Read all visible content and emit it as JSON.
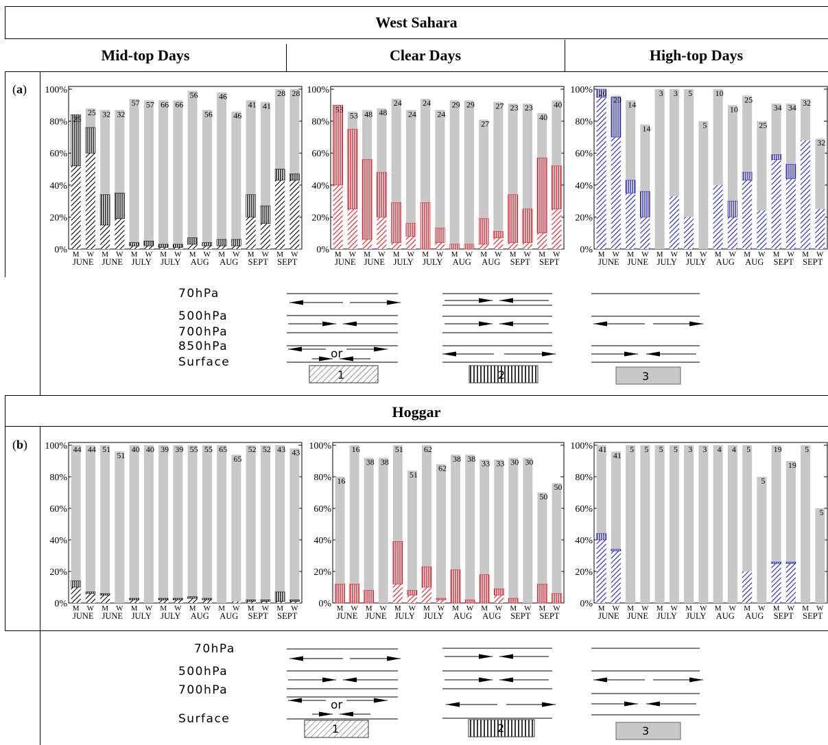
{
  "table": {
    "west_sahara": "West Sahara",
    "hoggar": "Hoggar",
    "col_mid": "Mid-top Days",
    "col_clear": "Clear Days",
    "col_high": "High-top Days",
    "label_a": "a",
    "label_b": "b"
  },
  "schematic": {
    "levels": [
      "70hPa",
      "500hPa",
      "700hPa",
      "850hPa",
      "Surface"
    ],
    "levels_b": [
      "70hPa",
      "500hPa",
      "700hPa",
      "Surface"
    ],
    "or_text": "or",
    "box_labels": [
      "1",
      "2",
      "3"
    ]
  },
  "colors": {
    "mid": "#000000",
    "clear": "#e8141c",
    "high": "#1c1cd2",
    "rest": "#c8c8c8"
  },
  "chart_data": [
    {
      "id": "a_mid",
      "type": "bar",
      "scheme": "mid",
      "categories": [
        "M",
        "W",
        "M",
        "W",
        "M",
        "W",
        "M",
        "W",
        "M",
        "W",
        "M",
        "W",
        "M",
        "W",
        "M",
        "W"
      ],
      "months": [
        "JUNE",
        "JUNE",
        "JULY",
        "JULY",
        "AUG",
        "AUG",
        "SEPT",
        "SEPT"
      ],
      "yticks": [
        "0%",
        "20%",
        "40%",
        "60%",
        "80%",
        "100%"
      ],
      "ylim": [
        0,
        100
      ],
      "totals": [
        84,
        88,
        87,
        87,
        94,
        93,
        93,
        93,
        99,
        87,
        98,
        86,
        93,
        92,
        100,
        100
      ],
      "counts": [
        "25",
        "25",
        "32",
        "32",
        "57",
        "57",
        "66",
        "66",
        "56",
        "56",
        "46",
        "46",
        "41",
        "41",
        "28",
        "28"
      ],
      "diag": [
        52,
        60,
        15,
        19,
        2,
        2,
        1,
        1,
        3,
        2,
        2,
        2,
        20,
        16,
        43,
        43
      ],
      "vert": [
        32,
        16,
        19,
        16,
        2,
        3,
        2,
        2,
        4,
        2,
        4,
        4,
        14,
        11,
        7,
        4
      ]
    },
    {
      "id": "a_clear",
      "type": "bar",
      "scheme": "clear",
      "categories": [
        "M",
        "W",
        "M",
        "W",
        "M",
        "W",
        "M",
        "W",
        "M",
        "W",
        "M",
        "W",
        "M",
        "W",
        "M",
        "W"
      ],
      "months": [
        "JUNE",
        "JUNE",
        "JULY",
        "JULY",
        "AUG",
        "AUG",
        "SEPT",
        "SEPT"
      ],
      "yticks": [
        "0%",
        "20%",
        "40%",
        "60%",
        "80%",
        "100%"
      ],
      "ylim": [
        0,
        100
      ],
      "totals": [
        90,
        86,
        87,
        88,
        94,
        87,
        94,
        87,
        93,
        93,
        81,
        92,
        91,
        91,
        85,
        93
      ],
      "counts": [
        "53",
        "53",
        "48",
        "48",
        "24",
        "24",
        "24",
        "24",
        "29",
        "29",
        "27",
        "27",
        "23",
        "23",
        "40",
        "40"
      ],
      "diag": [
        40,
        25,
        6,
        20,
        4,
        8,
        0,
        4,
        0,
        0,
        3,
        7,
        4,
        4,
        10,
        25
      ],
      "vert": [
        50,
        50,
        50,
        28,
        25,
        8,
        29,
        9,
        3,
        3,
        16,
        4,
        30,
        21,
        47,
        27
      ]
    },
    {
      "id": "a_high",
      "type": "bar",
      "scheme": "high",
      "categories": [
        "M",
        "W",
        "M",
        "W",
        "M",
        "W",
        "M",
        "W",
        "M",
        "W",
        "M",
        "W",
        "M",
        "W",
        "M",
        "W"
      ],
      "months": [
        "JUNE",
        "JUNE",
        "JULY",
        "JULY",
        "AUG",
        "AUG",
        "SEPT",
        "SEPT"
      ],
      "yticks": [
        "0%",
        "20%",
        "40%",
        "60%",
        "80%",
        "100%"
      ],
      "ylim": [
        0,
        100
      ],
      "totals": [
        100,
        96,
        93,
        78,
        100,
        100,
        100,
        80,
        100,
        90,
        96,
        80,
        91,
        91,
        94,
        69
      ],
      "counts": [
        "20",
        "20",
        "14",
        "14",
        "3",
        "3",
        "5",
        "5",
        "10",
        "10",
        "25",
        "25",
        "34",
        "34",
        "32",
        "32"
      ],
      "diag": [
        95,
        70,
        35,
        20,
        0,
        33,
        20,
        0,
        40,
        20,
        43,
        24,
        56,
        44,
        68,
        25
      ],
      "vert": [
        5,
        25,
        8,
        16,
        0,
        0,
        0,
        0,
        0,
        10,
        5,
        0,
        3,
        9,
        0,
        0
      ]
    },
    {
      "id": "b_mid",
      "type": "bar",
      "scheme": "mid",
      "categories": [
        "M",
        "W",
        "M",
        "W",
        "M",
        "W",
        "M",
        "W",
        "M",
        "W",
        "M",
        "W",
        "M",
        "W",
        "M",
        "W"
      ],
      "months": [
        "JUNE",
        "JUNE",
        "JULY",
        "JULY",
        "AUG",
        "AUG",
        "SEPT",
        "SEPT"
      ],
      "yticks": [
        "0%",
        "20%",
        "40%",
        "60%",
        "80%",
        "100%"
      ],
      "ylim": [
        0,
        100
      ],
      "totals": [
        100,
        100,
        100,
        96,
        100,
        100,
        100,
        100,
        100,
        100,
        100,
        94,
        100,
        100,
        100,
        98
      ],
      "counts": [
        "44",
        "44",
        "51",
        "51",
        "40",
        "40",
        "39",
        "39",
        "55",
        "55",
        "65",
        "65",
        "52",
        "52",
        "43",
        "43"
      ],
      "diag": [
        10,
        6,
        5,
        0,
        2,
        0,
        2,
        2,
        3,
        2,
        0,
        1,
        1,
        1,
        1,
        1
      ],
      "vert": [
        4,
        1,
        1,
        0,
        1,
        0,
        1,
        1,
        1,
        1,
        0,
        0,
        1,
        1,
        6,
        1
      ]
    },
    {
      "id": "b_clear",
      "type": "bar",
      "scheme": "clear",
      "categories": [
        "M",
        "W",
        "M",
        "W",
        "M",
        "W",
        "M",
        "W",
        "M",
        "W",
        "M",
        "W",
        "M",
        "W",
        "M",
        "W"
      ],
      "months": [
        "JUNE",
        "JUNE",
        "JULY",
        "JULY",
        "AUG",
        "AUG",
        "SEPT",
        "SEPT"
      ],
      "yticks": [
        "0%",
        "20%",
        "40%",
        "60%",
        "80%",
        "100%"
      ],
      "ylim": [
        0,
        100
      ],
      "totals": [
        80,
        100,
        92,
        92,
        100,
        84,
        100,
        88,
        94,
        94,
        91,
        91,
        92,
        92,
        70,
        76
      ],
      "counts": [
        "16",
        "16",
        "38",
        "38",
        "51",
        "51",
        "62",
        "62",
        "38",
        "38",
        "33",
        "33",
        "30",
        "30",
        "50",
        "50"
      ],
      "diag": [
        0,
        0,
        0,
        0,
        12,
        5,
        10,
        2,
        0,
        0,
        0,
        5,
        0,
        0,
        0,
        0
      ],
      "vert": [
        12,
        12,
        8,
        0,
        27,
        3,
        13,
        1,
        21,
        2,
        18,
        4,
        3,
        0,
        12,
        6
      ]
    },
    {
      "id": "b_high",
      "type": "bar",
      "scheme": "high",
      "categories": [
        "M",
        "W",
        "M",
        "W",
        "M",
        "W",
        "M",
        "W",
        "M",
        "W",
        "M",
        "W",
        "M",
        "W",
        "M",
        "W"
      ],
      "months": [
        "JUNE",
        "JUNE",
        "JULY",
        "JULY",
        "AUG",
        "AUG",
        "SEPT",
        "SEPT"
      ],
      "yticks": [
        "0%",
        "20%",
        "40%",
        "60%",
        "80%",
        "100%"
      ],
      "ylim": [
        0,
        100
      ],
      "totals": [
        100,
        96,
        100,
        100,
        100,
        100,
        100,
        100,
        100,
        100,
        100,
        80,
        100,
        90,
        100,
        60
      ],
      "counts": [
        "41",
        "41",
        "5",
        "5",
        "5",
        "5",
        "3",
        "3",
        "4",
        "4",
        "5",
        "5",
        "19",
        "19",
        "5",
        "5"
      ],
      "diag": [
        40,
        33,
        0,
        0,
        0,
        0,
        0,
        0,
        0,
        0,
        20,
        0,
        25,
        25,
        0,
        0
      ],
      "vert": [
        4,
        1,
        0,
        0,
        0,
        0,
        0,
        0,
        0,
        0,
        0,
        0,
        1,
        1,
        0,
        0
      ]
    }
  ]
}
